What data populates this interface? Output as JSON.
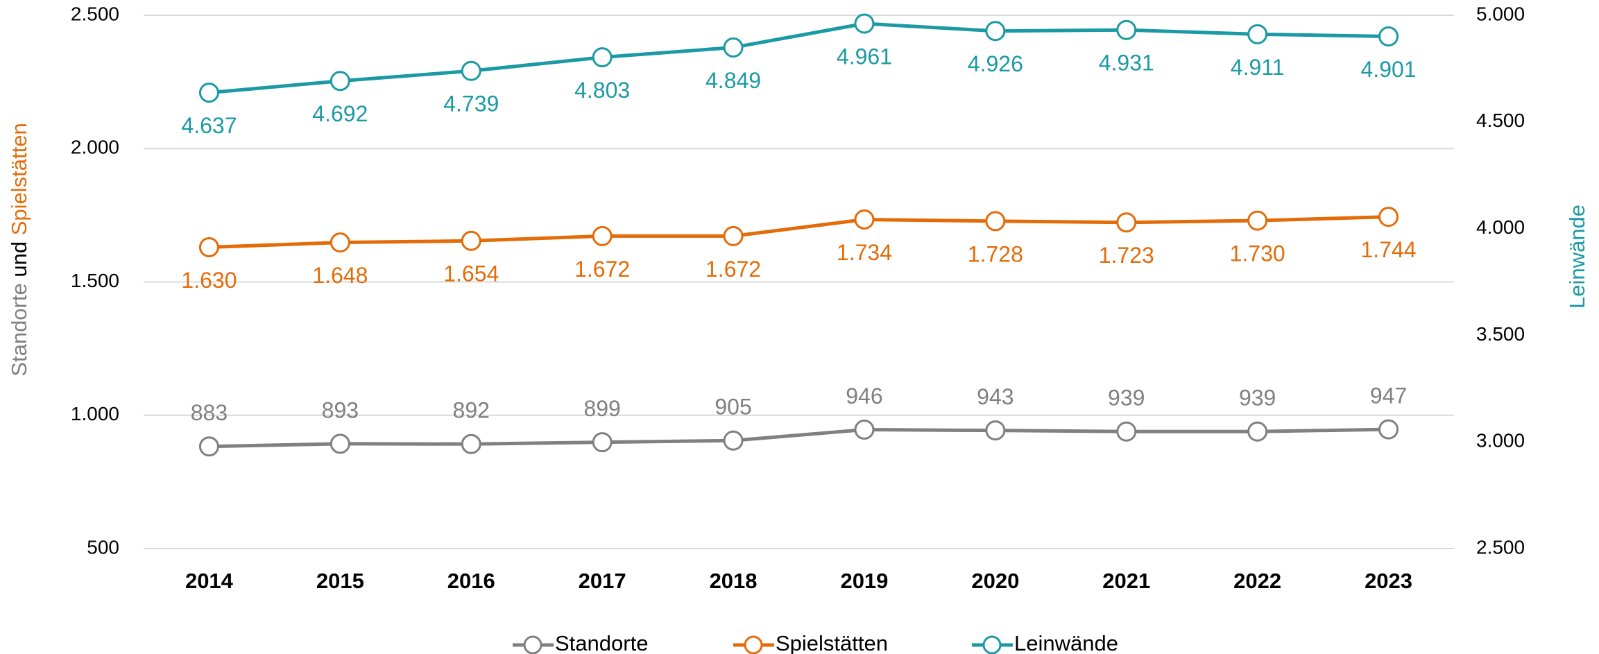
{
  "chart_data": {
    "type": "line",
    "categories": [
      "2014",
      "2015",
      "2016",
      "2017",
      "2018",
      "2019",
      "2020",
      "2021",
      "2022",
      "2023"
    ],
    "ylabel": [
      "Standorte",
      "und",
      "Spielstätten"
    ],
    "ylabel_colors": [
      "#808080",
      "#000000",
      "#e36c09"
    ],
    "y2label": "Leinwände",
    "y2label_color": "#1b9aa5",
    "ylim": [
      500,
      2500
    ],
    "yticks": [
      {
        "value": 500,
        "label": "500"
      },
      {
        "value": 1000,
        "label": "1.000"
      },
      {
        "value": 1500,
        "label": "1.500"
      },
      {
        "value": 2000,
        "label": "2.000"
      },
      {
        "value": 2500,
        "label": "2.500"
      }
    ],
    "y2lim": [
      2500,
      5000
    ],
    "y2ticks": [
      {
        "value": 2500,
        "label": "2.500"
      },
      {
        "value": 3000,
        "label": "3.000"
      },
      {
        "value": 3500,
        "label": "3.500"
      },
      {
        "value": 4000,
        "label": "4.000"
      },
      {
        "value": 4500,
        "label": "4.500"
      },
      {
        "value": 5000,
        "label": "5.000"
      }
    ],
    "grid": true,
    "legend": "bottom",
    "series": [
      {
        "name": "Standorte",
        "color": "#808080",
        "label_position": "above",
        "values": [
          883,
          893,
          892,
          899,
          905,
          946,
          943,
          939,
          939,
          947
        ],
        "value_labels": [
          "883",
          "893",
          "892",
          "899",
          "905",
          "946",
          "943",
          "939",
          "939",
          "947"
        ]
      },
      {
        "name": "Spielstätten",
        "color": "#e36c09",
        "label_position": "below",
        "values": [
          1630,
          1648,
          1654,
          1672,
          1672,
          1734,
          1728,
          1723,
          1730,
          1744
        ],
        "value_labels": [
          "1.630",
          "1.648",
          "1.654",
          "1.672",
          "1.672",
          "1.734",
          "1.728",
          "1.723",
          "1.730",
          "1.744"
        ]
      },
      {
        "name": "Leinwände",
        "color": "#1b9aa5",
        "axis": "y2",
        "label_position": "below",
        "values": [
          4637,
          4692,
          4739,
          4803,
          4849,
          4961,
          4926,
          4931,
          4911,
          4901
        ],
        "value_labels": [
          "4.637",
          "4.692",
          "4.739",
          "4.803",
          "4.849",
          "4.961",
          "4.926",
          "4.931",
          "4.911",
          "4.901"
        ]
      }
    ]
  }
}
